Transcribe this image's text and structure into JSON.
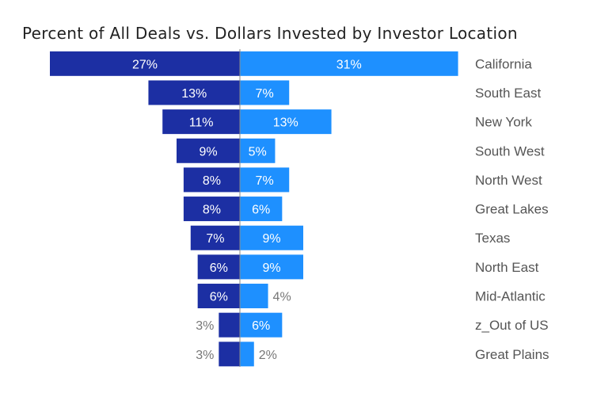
{
  "chart_data": {
    "type": "bar",
    "title": "Percent of All Deals vs. Dollars Invested by Investor Location",
    "categories": [
      "California",
      "South East",
      "New York",
      "South West",
      "North West",
      "Great Lakes",
      "Texas",
      "North East",
      "Mid-Atlantic",
      "z_Out of US",
      "Great Plains"
    ],
    "series": [
      {
        "values": [
          27,
          13,
          11,
          9,
          8,
          8,
          7,
          6,
          6,
          3,
          3
        ],
        "color": "#1c2fa3"
      },
      {
        "values": [
          31,
          7,
          13,
          5,
          7,
          6,
          9,
          9,
          4,
          6,
          2
        ],
        "color": "#1e90ff"
      }
    ],
    "value_suffix": "%",
    "label_color_inside": "#ffffff",
    "label_color_outside": "#777777",
    "category_label_color": "#555555"
  }
}
